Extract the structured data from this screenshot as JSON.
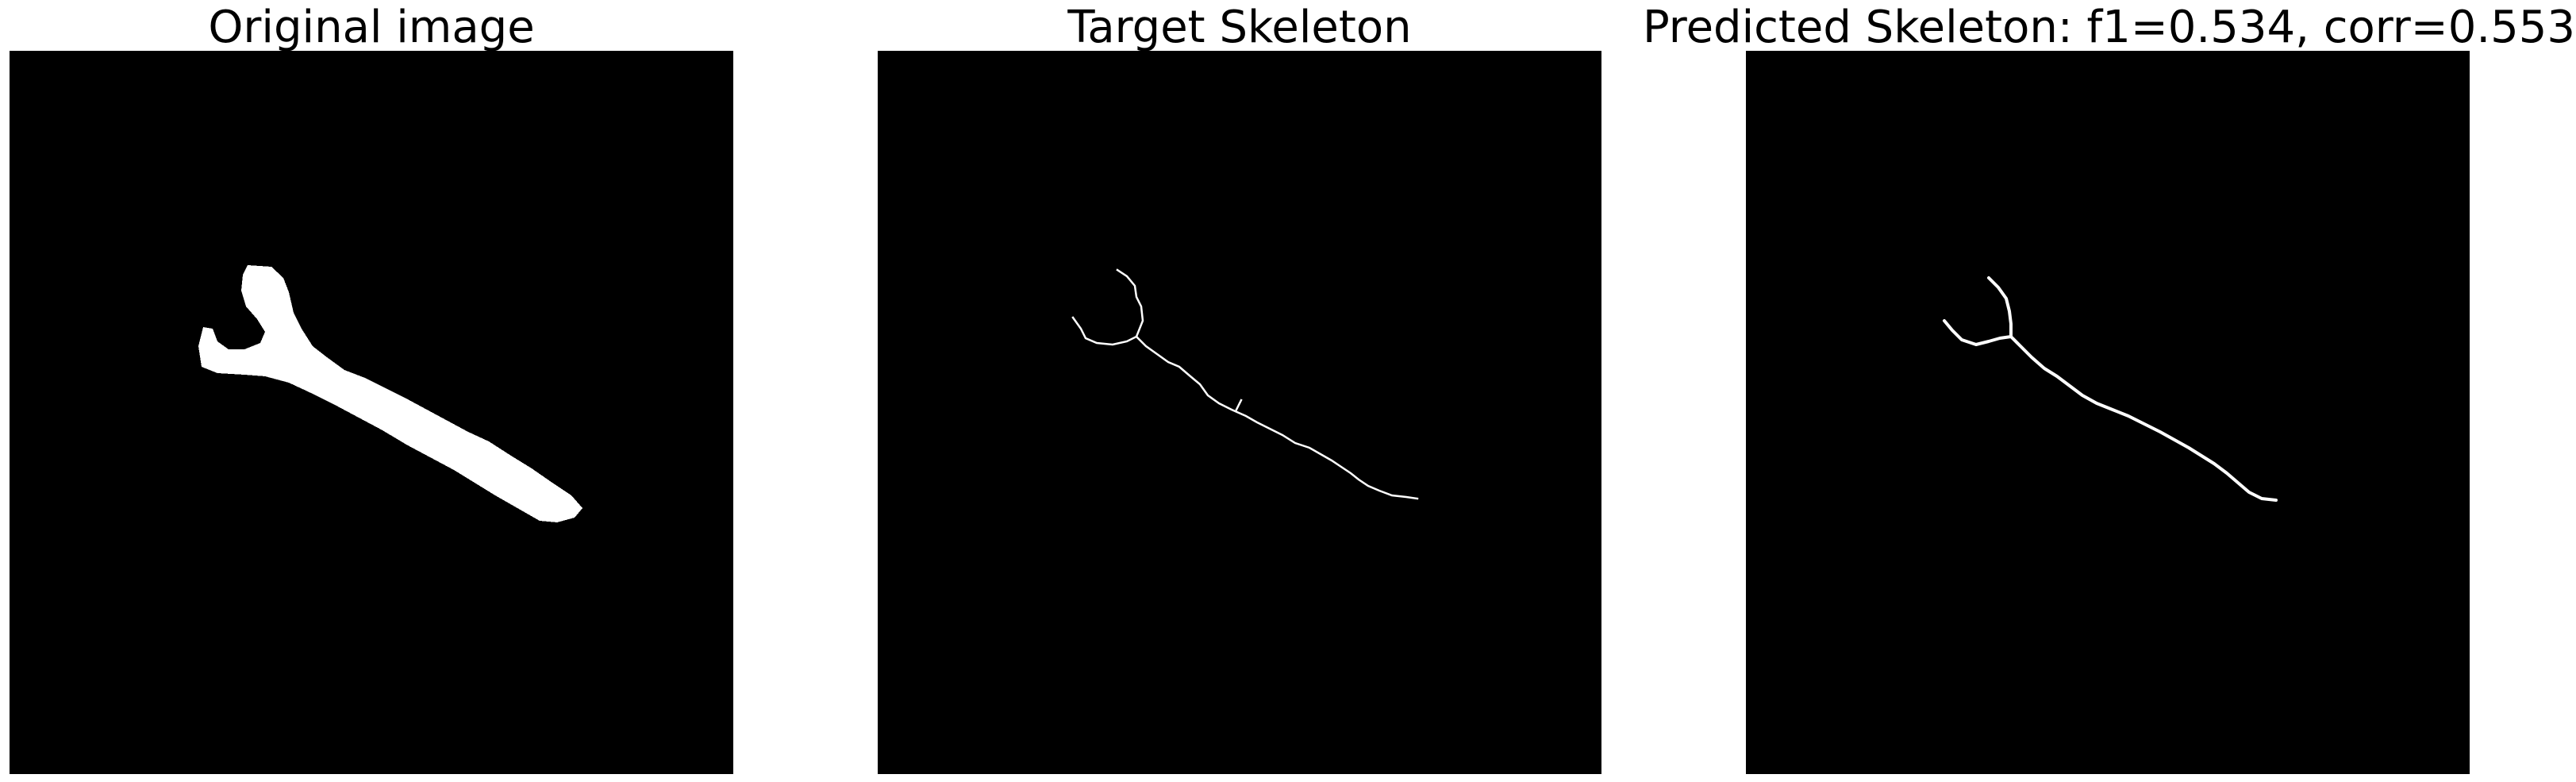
{
  "panels": [
    {
      "title": "Original image"
    },
    {
      "title": "Target Skeleton"
    },
    {
      "title": "Predicted Skeleton: f1=0.534, corr=0.553"
    }
  ],
  "colors": {
    "background": "#000000",
    "foreground": "#ffffff",
    "figure_background": "#ffffff"
  }
}
